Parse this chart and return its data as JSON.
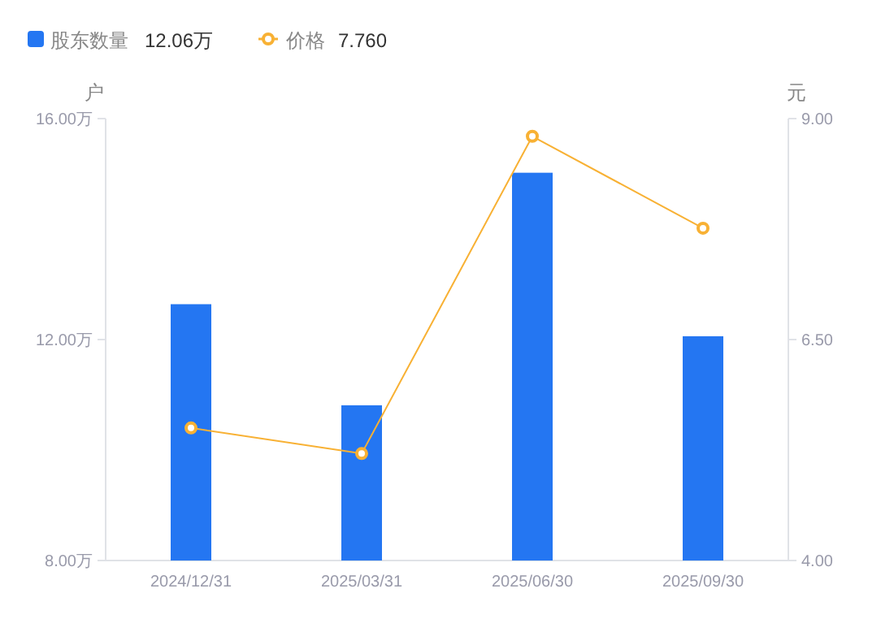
{
  "chart_data": {
    "type": "bar",
    "ylabel": "户",
    "y2label": "元",
    "categories": [
      "2024/12/31",
      "2025/03/31",
      "2025/06/30",
      "2025/09/30"
    ],
    "series": [
      {
        "name": "股东数量",
        "color": "#2476f2",
        "values": [
          12.64,
          10.81,
          15.02,
          12.06
        ]
      },
      {
        "name": "价格",
        "type": "line",
        "axis": "y2",
        "color": "#f8b134",
        "marker": "circle",
        "values": [
          5.5,
          5.21,
          8.8,
          7.76
        ]
      }
    ],
    "ylim": [
      8,
      16
    ],
    "yticks": [
      {
        "value": 8,
        "label": "8.00万"
      },
      {
        "value": 12,
        "label": "12.00万"
      },
      {
        "value": 16,
        "label": "16.00万"
      }
    ],
    "y2lim": [
      4,
      9
    ],
    "y2ticks": [
      {
        "value": 4,
        "label": "4.00"
      },
      {
        "value": 6.5,
        "label": "6.50"
      },
      {
        "value": 9,
        "label": "9.00"
      }
    ],
    "legend": "top left",
    "annotations": [
      "12.06万",
      "7.760"
    ]
  }
}
